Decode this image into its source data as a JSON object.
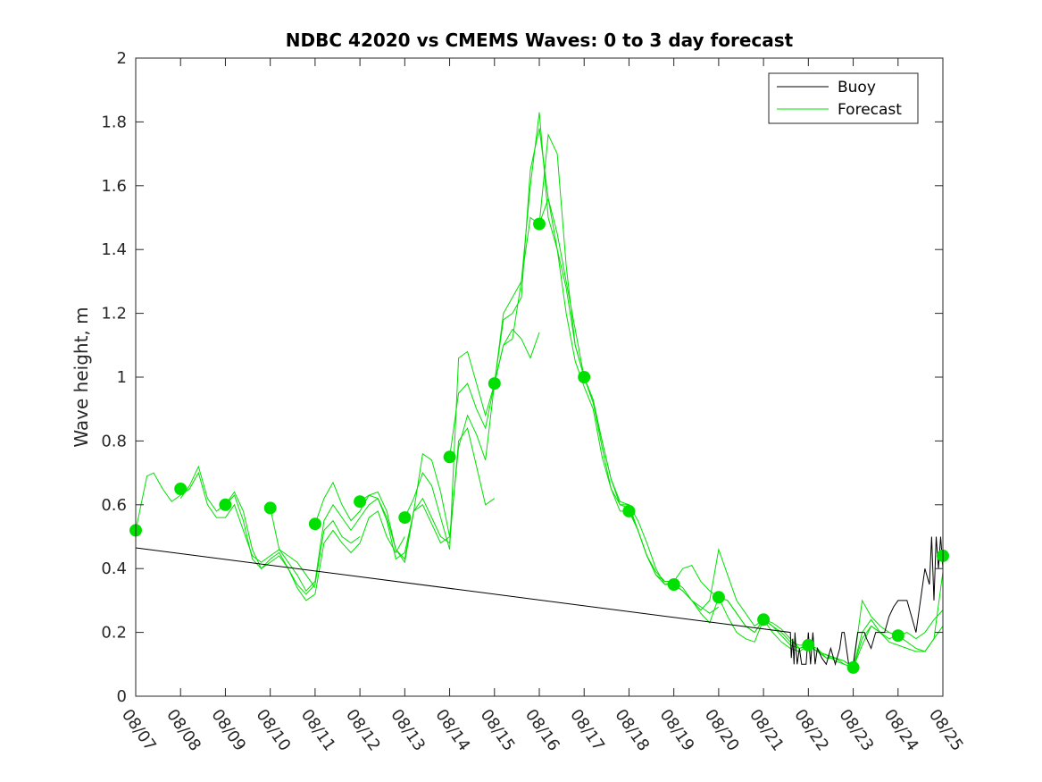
{
  "chart_data": {
    "type": "line",
    "title": "NDBC 42020 vs CMEMS Waves: 0 to 3 day forecast",
    "xlabel": "",
    "ylabel": "Wave height, m",
    "xlim": [
      0,
      18
    ],
    "ylim": [
      0,
      2
    ],
    "yticks": [
      0,
      0.2,
      0.4,
      0.6,
      0.8,
      1,
      1.2,
      1.4,
      1.6,
      1.8,
      2
    ],
    "ytick_labels": [
      "0",
      "0.2",
      "0.4",
      "0.6",
      "0.8",
      "1",
      "1.2",
      "1.4",
      "1.6",
      "1.8",
      "2"
    ],
    "xtick_labels": [
      "08/07",
      "08/08",
      "08/09",
      "08/10",
      "08/11",
      "08/12",
      "08/13",
      "08/14",
      "08/15",
      "08/16",
      "08/17",
      "08/18",
      "08/19",
      "08/20",
      "08/21",
      "08/22",
      "08/23",
      "08/24",
      "08/25"
    ],
    "legend": {
      "position": "top-right",
      "entries": [
        {
          "label": "Buoy",
          "color": "#000000"
        },
        {
          "label": "Forecast",
          "color": "#00e000"
        }
      ]
    },
    "series": [
      {
        "name": "Buoy",
        "color": "#000000",
        "x": [
          0,
          14.6,
          14.62,
          14.65,
          14.68,
          14.7,
          14.75,
          14.8,
          14.85,
          14.95,
          15.0,
          15.05,
          15.1,
          15.15,
          15.2,
          15.3,
          15.4,
          15.5,
          15.6,
          15.7,
          15.75,
          15.8,
          15.85,
          15.9,
          16.0,
          16.05,
          16.1,
          16.2,
          16.25,
          16.3,
          16.4,
          16.5,
          16.7,
          16.8,
          16.9,
          17.0,
          17.2,
          17.4,
          17.6,
          17.7,
          17.75,
          17.8,
          17.85,
          17.9,
          17.95,
          18.0
        ],
        "values": [
          0.465,
          0.2,
          0.12,
          0.18,
          0.1,
          0.2,
          0.1,
          0.15,
          0.1,
          0.1,
          0.2,
          0.1,
          0.2,
          0.1,
          0.15,
          0.12,
          0.1,
          0.15,
          0.1,
          0.15,
          0.2,
          0.2,
          0.15,
          0.1,
          0.1,
          0.15,
          0.2,
          0.2,
          0.2,
          0.18,
          0.15,
          0.2,
          0.2,
          0.25,
          0.28,
          0.3,
          0.3,
          0.2,
          0.4,
          0.35,
          0.5,
          0.3,
          0.5,
          0.4,
          0.5,
          0.4
        ]
      },
      {
        "name": "Forecast",
        "color": "#00e000",
        "x": [
          0,
          0.25,
          0.4,
          0.6,
          0.8,
          1.0,
          1.2,
          1.4,
          1.6,
          1.8,
          2.0,
          2.2,
          2.4,
          2.6,
          2.8,
          3.0,
          3.2,
          3.4,
          3.6,
          3.8,
          4.0
        ],
        "values": [
          0.52,
          0.69,
          0.7,
          0.65,
          0.61,
          0.63,
          0.65,
          0.7,
          0.6,
          0.56,
          0.56,
          0.6,
          0.52,
          0.44,
          0.42,
          0.44,
          0.46,
          0.44,
          0.42,
          0.38,
          0.34
        ]
      },
      {
        "name": "Forecast",
        "color": "#00e000",
        "x": [
          1.0,
          1.2,
          1.4,
          1.6,
          1.8,
          2.0,
          2.2,
          2.4,
          2.6,
          2.8,
          3.0,
          3.2,
          3.4,
          3.6,
          3.8,
          4.0,
          4.2,
          4.4,
          4.6,
          4.8,
          5.0
        ],
        "values": [
          0.62,
          0.66,
          0.72,
          0.62,
          0.58,
          0.6,
          0.63,
          0.55,
          0.43,
          0.4,
          0.43,
          0.45,
          0.4,
          0.35,
          0.32,
          0.35,
          0.52,
          0.55,
          0.5,
          0.48,
          0.5
        ]
      },
      {
        "name": "Forecast",
        "color": "#00e000",
        "x": [
          2.0,
          2.2,
          2.4,
          2.6,
          2.8,
          3.0,
          3.2,
          3.4,
          3.6,
          3.8,
          4.0,
          4.2,
          4.4,
          4.6,
          4.8,
          5.0,
          5.2,
          5.4,
          5.6,
          5.8,
          6.0
        ],
        "values": [
          0.6,
          0.64,
          0.58,
          0.46,
          0.4,
          0.42,
          0.44,
          0.4,
          0.34,
          0.3,
          0.32,
          0.48,
          0.52,
          0.48,
          0.45,
          0.48,
          0.56,
          0.58,
          0.5,
          0.45,
          0.5
        ]
      },
      {
        "name": "Forecast",
        "color": "#00e000",
        "x": [
          3.0,
          3.2,
          3.4,
          3.6,
          3.8,
          4.0,
          4.2,
          4.4,
          4.6,
          4.8,
          5.0,
          5.2,
          5.4,
          5.6,
          5.8,
          6.0,
          6.2,
          6.4,
          6.6,
          6.8,
          7.0
        ],
        "values": [
          0.59,
          0.46,
          0.42,
          0.38,
          0.33,
          0.36,
          0.55,
          0.6,
          0.56,
          0.52,
          0.56,
          0.6,
          0.62,
          0.55,
          0.43,
          0.45,
          0.58,
          0.6,
          0.54,
          0.48,
          0.5
        ]
      },
      {
        "name": "Forecast",
        "color": "#00e000",
        "x": [
          4.0,
          4.2,
          4.4,
          4.6,
          4.8,
          5.0,
          5.2,
          5.4,
          5.6,
          5.8,
          6.0,
          6.2,
          6.4,
          6.6,
          6.8,
          7.0,
          7.2,
          7.4,
          7.6,
          7.8,
          8.0
        ],
        "values": [
          0.54,
          0.62,
          0.67,
          0.6,
          0.55,
          0.58,
          0.63,
          0.64,
          0.58,
          0.46,
          0.42,
          0.58,
          0.62,
          0.56,
          0.5,
          0.48,
          0.8,
          0.84,
          0.72,
          0.6,
          0.62
        ]
      },
      {
        "name": "Forecast",
        "color": "#00e000",
        "x": [
          5.0,
          5.2,
          5.4,
          5.6,
          5.8,
          6.0,
          6.2,
          6.4,
          6.6,
          6.8,
          7.0,
          7.2,
          7.4,
          7.6,
          7.8,
          8.0,
          8.2,
          8.4,
          8.6,
          8.8,
          9.0
        ],
        "values": [
          0.61,
          0.63,
          0.62,
          0.56,
          0.46,
          0.43,
          0.58,
          0.76,
          0.74,
          0.64,
          0.5,
          0.78,
          0.88,
          0.82,
          0.74,
          0.98,
          1.1,
          1.15,
          1.12,
          1.06,
          1.14
        ]
      },
      {
        "name": "Forecast",
        "color": "#00e000",
        "x": [
          6.0,
          6.2,
          6.4,
          6.6,
          6.8,
          7.0,
          7.2,
          7.4,
          7.6,
          7.8,
          8.0,
          8.2,
          8.4,
          8.6,
          8.8,
          9.0,
          9.2,
          9.4,
          9.6,
          9.8,
          10.0
        ],
        "values": [
          0.56,
          0.62,
          0.7,
          0.66,
          0.56,
          0.46,
          1.06,
          1.08,
          0.98,
          0.88,
          0.98,
          1.2,
          1.25,
          1.3,
          1.5,
          1.48,
          1.76,
          1.7,
          1.35,
          1.1,
          1.0
        ]
      },
      {
        "name": "Forecast",
        "color": "#00e000",
        "x": [
          7.0,
          7.2,
          7.4,
          7.6,
          7.8,
          8.0,
          8.2,
          8.4,
          8.6,
          8.8,
          9.0,
          9.2,
          9.4,
          9.6,
          9.8,
          10.0,
          10.2,
          10.4,
          10.6,
          10.8,
          11.0
        ],
        "values": [
          0.75,
          0.95,
          0.98,
          0.9,
          0.84,
          0.98,
          1.18,
          1.2,
          1.25,
          1.65,
          1.78,
          1.56,
          1.4,
          1.2,
          1.05,
          0.97,
          0.9,
          0.75,
          0.65,
          0.58,
          0.58
        ]
      },
      {
        "name": "Forecast",
        "color": "#00e000",
        "x": [
          8.0,
          8.2,
          8.4,
          8.6,
          8.8,
          9.0,
          9.2,
          9.4,
          9.6,
          9.8,
          10.0,
          10.2,
          10.4,
          10.6,
          10.8,
          11.0,
          11.2,
          11.4,
          11.6,
          11.8,
          12.0
        ],
        "values": [
          0.98,
          1.1,
          1.12,
          1.3,
          1.6,
          1.83,
          1.5,
          1.4,
          1.28,
          1.1,
          1.0,
          0.92,
          0.78,
          0.65,
          0.6,
          0.6,
          0.55,
          0.48,
          0.4,
          0.35,
          0.36
        ]
      },
      {
        "name": "Forecast",
        "color": "#00e000",
        "x": [
          9.0,
          9.2,
          9.4,
          9.6,
          9.8,
          10.0,
          10.2,
          10.4,
          10.6,
          10.8,
          11.0,
          11.2,
          11.4,
          11.6,
          11.8,
          12.0,
          12.2,
          12.4,
          12.6,
          12.8,
          13.0
        ],
        "values": [
          1.48,
          1.56,
          1.45,
          1.3,
          1.15,
          1.0,
          0.93,
          0.8,
          0.68,
          0.6,
          0.59,
          0.52,
          0.44,
          0.38,
          0.36,
          0.36,
          0.34,
          0.3,
          0.28,
          0.26,
          0.28
        ]
      },
      {
        "name": "Forecast",
        "color": "#00e000",
        "x": [
          10.0,
          10.2,
          10.4,
          10.6,
          10.8,
          11.0,
          11.2,
          11.4,
          11.6,
          11.8,
          12.0,
          12.2,
          12.4,
          12.6,
          12.8,
          13.0,
          13.2,
          13.4,
          13.6,
          13.8,
          14.0
        ],
        "values": [
          1.0,
          0.92,
          0.8,
          0.68,
          0.61,
          0.6,
          0.52,
          0.44,
          0.39,
          0.36,
          0.36,
          0.4,
          0.41,
          0.36,
          0.33,
          0.31,
          0.3,
          0.26,
          0.22,
          0.2,
          0.24
        ]
      },
      {
        "name": "Forecast",
        "color": "#00e000",
        "x": [
          11.0,
          11.2,
          11.4,
          11.6,
          11.8,
          12.0,
          12.2,
          12.4,
          12.6,
          12.8,
          13.0,
          13.2,
          13.4,
          13.6,
          13.8,
          14.0,
          14.2,
          14.4,
          14.6,
          14.8,
          15.0
        ],
        "values": [
          0.58,
          0.52,
          0.44,
          0.38,
          0.35,
          0.35,
          0.33,
          0.3,
          0.27,
          0.3,
          0.46,
          0.38,
          0.3,
          0.26,
          0.22,
          0.24,
          0.22,
          0.2,
          0.17,
          0.16,
          0.16
        ]
      },
      {
        "name": "Forecast",
        "color": "#00e000",
        "x": [
          12.0,
          12.2,
          12.4,
          12.6,
          12.8,
          13.0,
          13.2,
          13.4,
          13.6,
          13.8,
          14.0,
          14.2,
          14.4,
          14.6,
          14.8,
          15.0,
          15.2,
          15.4,
          15.6,
          15.8,
          16.0
        ],
        "values": [
          0.35,
          0.33,
          0.3,
          0.26,
          0.23,
          0.31,
          0.3,
          0.26,
          0.22,
          0.2,
          0.24,
          0.23,
          0.21,
          0.18,
          0.15,
          0.16,
          0.15,
          0.12,
          0.12,
          0.1,
          0.09
        ]
      },
      {
        "name": "Forecast",
        "color": "#00e000",
        "x": [
          13.0,
          13.2,
          13.4,
          13.6,
          13.8,
          14.0,
          14.2,
          14.4,
          14.6,
          14.8,
          15.0,
          15.2,
          15.4,
          15.6,
          15.8,
          16.0,
          16.2,
          16.4,
          16.6,
          16.8,
          17.0
        ],
        "values": [
          0.31,
          0.25,
          0.2,
          0.18,
          0.17,
          0.24,
          0.22,
          0.19,
          0.16,
          0.15,
          0.16,
          0.14,
          0.12,
          0.12,
          0.11,
          0.09,
          0.3,
          0.25,
          0.22,
          0.2,
          0.19
        ]
      },
      {
        "name": "Forecast",
        "color": "#00e000",
        "x": [
          14.0,
          14.2,
          14.4,
          14.6,
          14.8,
          15.0,
          15.2,
          15.4,
          15.6,
          15.8,
          16.0,
          16.2,
          16.4,
          16.6,
          16.8,
          17.0,
          17.2,
          17.4,
          17.6,
          17.8,
          18.0
        ],
        "values": [
          0.24,
          0.2,
          0.17,
          0.15,
          0.14,
          0.16,
          0.14,
          0.13,
          0.12,
          0.11,
          0.09,
          0.16,
          0.22,
          0.2,
          0.18,
          0.19,
          0.17,
          0.15,
          0.14,
          0.18,
          0.39
        ]
      },
      {
        "name": "Forecast",
        "color": "#00e000",
        "x": [
          15.0,
          15.2,
          15.4,
          15.6,
          15.8,
          16.0,
          16.2,
          16.4,
          16.6,
          16.8,
          17.0,
          17.2,
          17.4,
          17.6,
          17.8,
          18.0
        ],
        "values": [
          0.16,
          0.14,
          0.13,
          0.11,
          0.1,
          0.09,
          0.2,
          0.24,
          0.2,
          0.17,
          0.16,
          0.15,
          0.14,
          0.14,
          0.18,
          0.22
        ]
      },
      {
        "name": "Forecast",
        "color": "#00e000",
        "x": [
          16.0,
          16.2,
          16.4,
          16.6,
          16.8,
          17.0,
          17.2,
          17.4,
          17.6,
          17.8,
          18.0
        ],
        "values": [
          0.09,
          0.18,
          0.22,
          0.2,
          0.2,
          0.19,
          0.2,
          0.18,
          0.2,
          0.24,
          0.27
        ]
      }
    ],
    "markers": {
      "name": "Forecast analysis points",
      "color": "#00e000",
      "x": [
        0,
        1,
        2,
        3,
        4,
        5,
        6,
        7,
        8,
        9,
        10,
        11,
        12,
        13,
        14,
        15,
        16,
        17,
        18
      ],
      "values": [
        0.52,
        0.65,
        0.6,
        0.59,
        0.54,
        0.61,
        0.56,
        0.75,
        0.98,
        1.48,
        1.0,
        0.58,
        0.35,
        0.31,
        0.24,
        0.16,
        0.09,
        0.19,
        0.44
      ]
    }
  }
}
